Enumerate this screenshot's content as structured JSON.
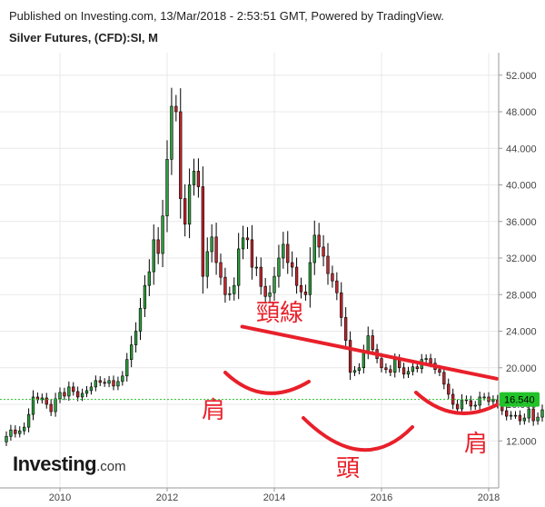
{
  "header": {
    "published": "Published on Investing.com, 13/Mar/2018 - 2:53:51 GMT, Powered by TradingView.",
    "symbol": "Silver Futures, (CFD):SI, M"
  },
  "logo": {
    "main": "Investing",
    "suffix": ".com"
  },
  "colors": {
    "up": "#2e9e3e",
    "down": "#c0262c",
    "annotation": "#e8202a",
    "price_tag": "#22c32a",
    "grid": "#e9e9e9"
  },
  "chart_data": {
    "type": "candlestick",
    "x_ticks": [
      "2010",
      "2012",
      "2014",
      "2016",
      "2018"
    ],
    "y_ticks": [
      "12.000",
      "16.000",
      "20.000",
      "24.000",
      "28.000",
      "32.000",
      "36.000",
      "40.000",
      "44.000",
      "48.000",
      "52.000"
    ],
    "ylim": [
      8.5,
      54
    ],
    "xlim": [
      2009.0,
      2018.3
    ],
    "last_price": {
      "label": "16.540",
      "value": 16.54
    },
    "annotations": [
      {
        "label": "頸線",
        "meaning": "neckline"
      },
      {
        "label": "肩",
        "meaning": "left shoulder"
      },
      {
        "label": "頭",
        "meaning": "head"
      },
      {
        "label": "肩",
        "meaning": "right shoulder"
      }
    ],
    "neckline": {
      "from": [
        2013.4,
        24.5
      ],
      "to": [
        2018.15,
        18.8
      ]
    },
    "close": [
      12.5,
      13.2,
      12.8,
      13.1,
      13.5,
      14.9,
      16.8,
      16.5,
      16.7,
      16.0,
      15.2,
      16.6,
      17.3,
      16.9,
      17.9,
      17.4,
      16.8,
      17.2,
      17.5,
      17.9,
      18.6,
      18.4,
      18.3,
      18.6,
      18.0,
      18.5,
      19.1,
      20.9,
      22.5,
      24.0,
      26.5,
      29.0,
      30.5,
      34.0,
      32.5,
      36.6,
      42.8,
      48.6,
      48.0,
      38.5,
      35.7,
      40.0,
      41.5,
      39.8,
      30.0,
      32.7,
      34.3,
      31.5,
      29.9,
      28.0,
      28.1,
      29.0,
      33.0,
      34.2,
      34.0,
      31.0,
      31.0,
      28.9,
      27.8,
      28.2,
      30.0,
      32.0,
      33.5,
      31.5,
      31.0,
      29.0,
      28.3,
      28.0,
      31.5,
      34.5,
      33.2,
      32.2,
      30.3,
      29.5,
      28.2,
      25.5,
      23.0,
      19.5,
      19.7,
      20.0,
      21.8,
      23.5,
      22.0,
      21.0,
      20.0,
      19.8,
      19.5,
      20.9,
      20.0,
      19.3,
      19.6,
      20.1,
      19.9,
      20.9,
      21.0,
      20.5,
      19.8,
      19.5,
      18.2,
      17.1,
      16.0,
      15.5,
      16.5,
      16.4,
      15.8,
      15.9,
      16.8,
      16.8,
      16.3,
      16.5,
      16.0,
      15.3,
      14.7,
      14.8,
      14.8,
      14.2,
      14.5,
      15.5,
      14.2,
      14.6,
      15.4,
      15.5,
      17.0,
      17.5,
      15.9,
      18.5,
      19.6,
      20.0,
      19.2,
      18.4,
      18.1,
      16.5,
      17.1,
      17.9,
      17.5,
      18.4,
      17.6,
      17.0,
      16.9,
      16.6,
      17.2,
      16.6,
      16.5,
      17.2,
      16.9,
      16.5,
      17.5,
      16.7,
      16.9,
      16.5,
      16.7,
      16.4,
      16.5
    ]
  }
}
